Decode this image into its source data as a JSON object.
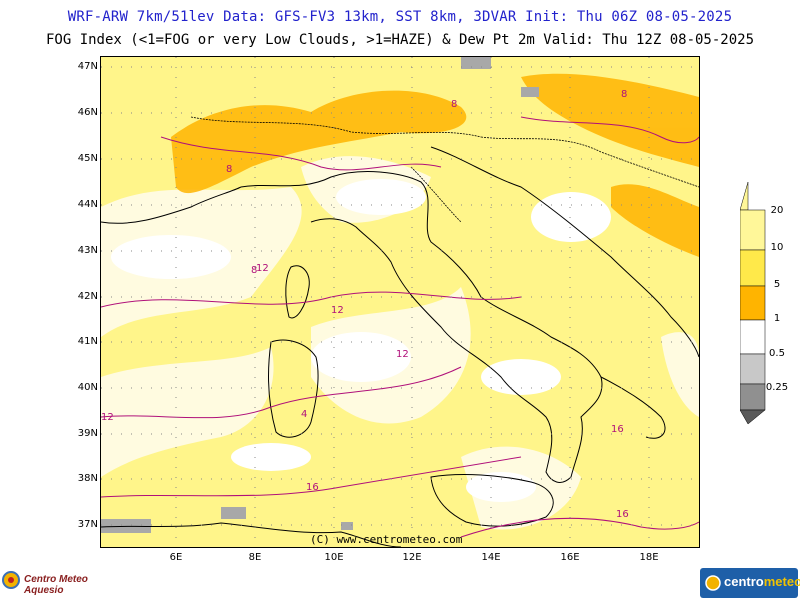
{
  "header": {
    "title_line1": "WRF-ARW 7km/51lev  Data: GFS-FV3 13km, SST 8km, 3DVAR  Init: Thu 06Z 08-05-2025",
    "title_line2": "FOG Index (<1=FOG or very Low Clouds, >1=HAZE) & Dew Pt 2m  Valid: Thu 12Z 08-05-2025"
  },
  "map": {
    "lat_labels": [
      "47N",
      "46N",
      "45N",
      "44N",
      "43N",
      "42N",
      "41N",
      "40N",
      "39N",
      "38N",
      "37N"
    ],
    "lon_labels": [
      "6E",
      "8E",
      "10E",
      "12E",
      "14E",
      "16E",
      "18E"
    ],
    "copyright": "(C) www.centrometeo.com",
    "contour_labels": [
      "8",
      "12",
      "12",
      "12",
      "12",
      "16",
      "16",
      "16",
      "8",
      "8",
      "8",
      "4"
    ]
  },
  "legend": {
    "labels": [
      "20",
      "10",
      "5",
      "1",
      "0.5",
      "0.25"
    ],
    "colors": [
      "#fff799",
      "#ffe94a",
      "#ffb400",
      "#ffffff",
      "#c8c8c8",
      "#909090",
      "#5a5a5a"
    ]
  },
  "logos": {
    "left_text": "Centro Meteo Aquesio",
    "right_text_a": "centro",
    "right_text_b": "meteo"
  },
  "colors": {
    "title_blue": "#2222cc",
    "contour": "#b0107a",
    "coast": "#000000"
  }
}
